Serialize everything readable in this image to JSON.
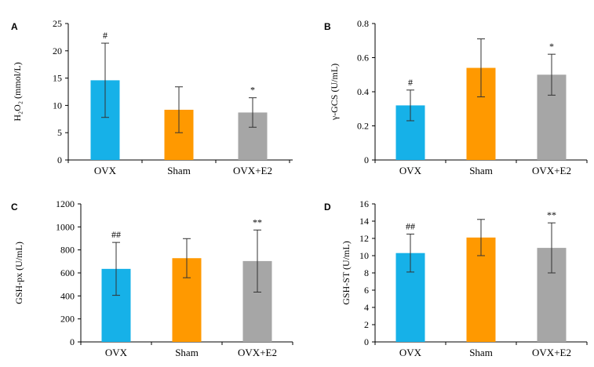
{
  "colors": {
    "OVX": "#16B1E8",
    "Sham": "#FF9900",
    "OVX+E2": "#A6A6A6"
  },
  "chart_data": [
    {
      "panel": "A",
      "type": "bar",
      "categories": [
        "OVX",
        "Sham",
        "OVX+E2"
      ],
      "values": [
        14.6,
        9.2,
        8.7
      ],
      "error": [
        6.8,
        4.2,
        2.7
      ],
      "significance": [
        "#",
        "",
        "*"
      ],
      "ylabel": "H₂O₂ (mmol/L)",
      "ylim": [
        0,
        25
      ],
      "yticks": [
        0,
        5,
        10,
        15,
        20,
        25
      ],
      "ytick_labels": [
        "0",
        "5",
        "10",
        "15",
        "20",
        "25"
      ]
    },
    {
      "panel": "B",
      "type": "bar",
      "categories": [
        "OVX",
        "Sham",
        "OVX+E2"
      ],
      "values": [
        0.32,
        0.54,
        0.5
      ],
      "error": [
        0.09,
        0.17,
        0.12
      ],
      "significance": [
        "#",
        "",
        "*"
      ],
      "ylabel": "γ-GCS (U/mL)",
      "ylim": [
        0,
        0.8
      ],
      "yticks": [
        0,
        0.2,
        0.4,
        0.6,
        0.8
      ],
      "ytick_labels": [
        "0",
        "0.2",
        "0.4",
        "0.6",
        "0.8"
      ]
    },
    {
      "panel": "C",
      "type": "bar",
      "categories": [
        "OVX",
        "Sham",
        "OVX+E2"
      ],
      "values": [
        635,
        728,
        703
      ],
      "error": [
        230,
        170,
        270
      ],
      "significance": [
        "##",
        "",
        "**"
      ],
      "ylabel": "GSH-px (U/mL)",
      "ylim": [
        0,
        1200
      ],
      "yticks": [
        0,
        200,
        400,
        600,
        800,
        1000,
        1200
      ],
      "ytick_labels": [
        "0",
        "200",
        "400",
        "600",
        "800",
        "1000",
        "1200"
      ]
    },
    {
      "panel": "D",
      "type": "bar",
      "categories": [
        "OVX",
        "Sham",
        "OVX+E2"
      ],
      "values": [
        10.3,
        12.1,
        10.9
      ],
      "error": [
        2.2,
        2.1,
        2.9
      ],
      "significance": [
        "##",
        "",
        "**"
      ],
      "ylabel": "GSH-ST (U/mL)",
      "ylim": [
        0,
        16
      ],
      "yticks": [
        0,
        2,
        4,
        6,
        8,
        10,
        12,
        14,
        16
      ],
      "ytick_labels": [
        "0",
        "2",
        "4",
        "6",
        "8",
        "10",
        "12",
        "14",
        "16"
      ]
    }
  ]
}
